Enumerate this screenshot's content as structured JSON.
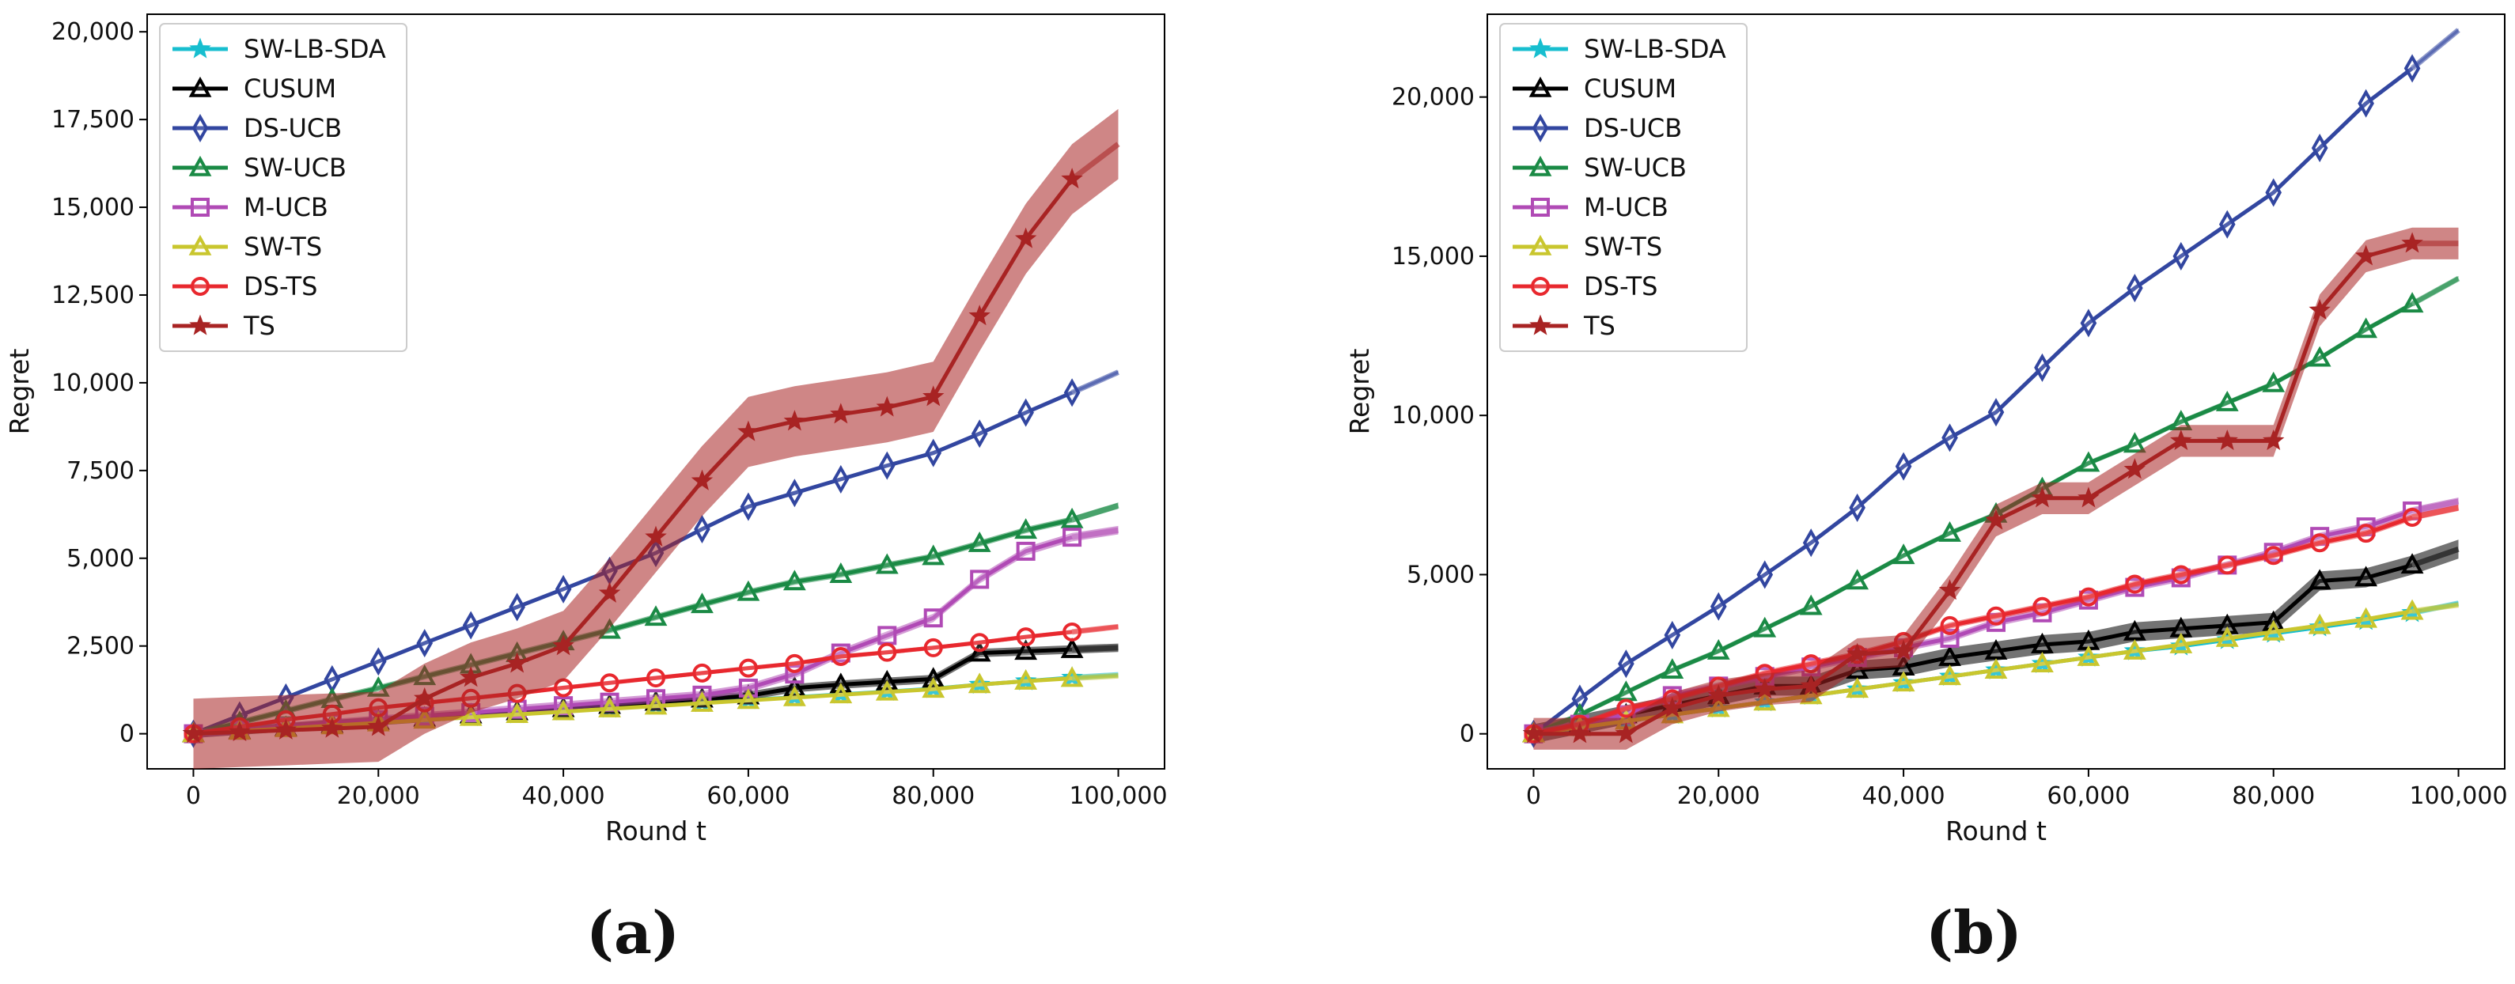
{
  "chart_data": [
    {
      "type": "line",
      "caption": "(a)",
      "xlabel": "Round t",
      "ylabel": "Regret",
      "xlim": [
        -5000,
        105000
      ],
      "ylim": [
        -1000,
        20500
      ],
      "xticks": [
        0,
        20000,
        40000,
        60000,
        80000,
        100000
      ],
      "xtick_labels": [
        "0",
        "20,000",
        "40,000",
        "60,000",
        "80,000",
        "100,000"
      ],
      "yticks": [
        0,
        2500,
        5000,
        7500,
        10000,
        12500,
        15000,
        17500,
        20000
      ],
      "ytick_labels": [
        "0",
        "2,500",
        "5,000",
        "7,500",
        "10,000",
        "12,500",
        "15,000",
        "17,500",
        "20,000"
      ],
      "legend_position": "top-left",
      "x": [
        0,
        5000,
        10000,
        15000,
        20000,
        25000,
        30000,
        35000,
        40000,
        45000,
        50000,
        55000,
        60000,
        65000,
        70000,
        75000,
        80000,
        85000,
        90000,
        95000
      ],
      "series": [
        {
          "name": "SW-LB-SDA",
          "color": "#17becf",
          "marker": "star",
          "band": 40,
          "end_value": 1680,
          "values": [
            0,
            80,
            160,
            240,
            320,
            400,
            480,
            560,
            640,
            720,
            800,
            880,
            960,
            1040,
            1120,
            1200,
            1280,
            1400,
            1500,
            1600
          ]
        },
        {
          "name": "CUSUM",
          "color": "#000000",
          "marker": "triangle",
          "band": 120,
          "end_value": 2450,
          "values": [
            0,
            90,
            180,
            270,
            360,
            450,
            540,
            630,
            720,
            810,
            900,
            990,
            1080,
            1300,
            1400,
            1480,
            1560,
            2300,
            2350,
            2400
          ]
        },
        {
          "name": "DS-UCB",
          "color": "#3246a0",
          "marker": "diamond",
          "band": 50,
          "end_value": 10300,
          "values": [
            0,
            520,
            1030,
            1550,
            2060,
            2580,
            3090,
            3610,
            4120,
            4640,
            5150,
            5830,
            6470,
            6860,
            7250,
            7640,
            8000,
            8550,
            9150,
            9720
          ]
        },
        {
          "name": "SW-UCB",
          "color": "#1a8a45",
          "marker": "triangle",
          "band": 90,
          "end_value": 6500,
          "values": [
            0,
            320,
            650,
            980,
            1300,
            1630,
            1960,
            2290,
            2620,
            2950,
            3320,
            3680,
            4030,
            4330,
            4540,
            4800,
            5050,
            5420,
            5800,
            6100
          ]
        },
        {
          "name": "M-UCB",
          "color": "#b04ab5",
          "marker": "square",
          "band": 120,
          "end_value": 5800,
          "values": [
            0,
            100,
            200,
            300,
            400,
            500,
            600,
            700,
            800,
            900,
            1000,
            1100,
            1300,
            1700,
            2300,
            2800,
            3300,
            4400,
            5200,
            5600
          ]
        },
        {
          "name": "SW-TS",
          "color": "#c9c62e",
          "marker": "triangle",
          "band": 40,
          "end_value": 1650,
          "values": [
            0,
            75,
            150,
            230,
            310,
            390,
            470,
            550,
            630,
            710,
            790,
            870,
            950,
            1030,
            1110,
            1190,
            1270,
            1400,
            1500,
            1580
          ]
        },
        {
          "name": "DS-TS",
          "color": "#e8282e",
          "marker": "circle",
          "band": 60,
          "end_value": 3050,
          "values": [
            0,
            200,
            400,
            560,
            740,
            880,
            1010,
            1150,
            1310,
            1450,
            1590,
            1730,
            1870,
            2000,
            2200,
            2320,
            2450,
            2600,
            2760,
            2900
          ]
        },
        {
          "name": "TS",
          "color": "#a82323",
          "marker": "star",
          "band": 1000,
          "end_value": 16800,
          "values": [
            0,
            50,
            100,
            150,
            200,
            1000,
            1600,
            2000,
            2500,
            4000,
            5600,
            7200,
            8600,
            8900,
            9100,
            9300,
            9600,
            11900,
            14100,
            15800
          ]
        }
      ]
    },
    {
      "type": "line",
      "caption": "(b)",
      "xlabel": "Round t",
      "ylabel": "Regret",
      "xlim": [
        -5000,
        105000
      ],
      "ylim": [
        -1100,
        22600
      ],
      "xticks": [
        0,
        20000,
        40000,
        60000,
        80000,
        100000
      ],
      "xtick_labels": [
        "0",
        "20,000",
        "40,000",
        "60,000",
        "80,000",
        "100,000"
      ],
      "yticks": [
        0,
        5000,
        10000,
        15000,
        20000
      ],
      "ytick_labels": [
        "0",
        "5,000",
        "10,000",
        "15,000",
        "20,000"
      ],
      "legend_position": "top-left",
      "x": [
        0,
        5000,
        10000,
        15000,
        20000,
        25000,
        30000,
        35000,
        40000,
        45000,
        50000,
        55000,
        60000,
        65000,
        70000,
        75000,
        80000,
        85000,
        90000,
        95000
      ],
      "series": [
        {
          "name": "SW-LB-SDA",
          "color": "#17becf",
          "marker": "star",
          "band": 60,
          "end_value": 4100,
          "values": [
            0,
            200,
            400,
            600,
            800,
            1000,
            1200,
            1400,
            1600,
            1800,
            2000,
            2200,
            2400,
            2600,
            2750,
            2950,
            3150,
            3350,
            3550,
            3800
          ]
        },
        {
          "name": "CUSUM",
          "color": "#000000",
          "marker": "triangle",
          "band": 300,
          "end_value": 5800,
          "values": [
            0,
            300,
            600,
            900,
            1200,
            1500,
            1500,
            2000,
            2100,
            2400,
            2600,
            2800,
            2900,
            3200,
            3300,
            3400,
            3500,
            4800,
            4900,
            5300
          ]
        },
        {
          "name": "DS-UCB",
          "color": "#3246a0",
          "marker": "diamond",
          "band": 60,
          "end_value": 22100,
          "values": [
            0,
            1100,
            2200,
            3100,
            4000,
            5000,
            6000,
            7100,
            8400,
            9300,
            10100,
            11500,
            12900,
            14000,
            15000,
            16000,
            17000,
            18400,
            19800,
            20900
          ]
        },
        {
          "name": "SW-UCB",
          "color": "#1a8a45",
          "marker": "triangle",
          "band": 80,
          "end_value": 14300,
          "values": [
            0,
            600,
            1300,
            2000,
            2600,
            3300,
            4000,
            4800,
            5600,
            6300,
            6900,
            7700,
            8500,
            9100,
            9800,
            10400,
            11000,
            11800,
            12700,
            13500
          ]
        },
        {
          "name": "M-UCB",
          "color": "#b04ab5",
          "marker": "square",
          "band": 120,
          "end_value": 7300,
          "values": [
            0,
            300,
            600,
            1200,
            1500,
            1800,
            2100,
            2400,
            2700,
            3000,
            3500,
            3800,
            4200,
            4600,
            4900,
            5300,
            5700,
            6200,
            6500,
            7000
          ]
        },
        {
          "name": "SW-TS",
          "color": "#c9c62e",
          "marker": "triangle",
          "band": 60,
          "end_value": 4050,
          "values": [
            0,
            200,
            400,
            600,
            800,
            1000,
            1200,
            1400,
            1600,
            1800,
            2000,
            2200,
            2400,
            2600,
            2800,
            3000,
            3200,
            3400,
            3600,
            3850
          ]
        },
        {
          "name": "DS-TS",
          "color": "#e8282e",
          "marker": "circle",
          "band": 100,
          "end_value": 7100,
          "values": [
            0,
            300,
            800,
            1100,
            1500,
            1900,
            2200,
            2500,
            2900,
            3400,
            3700,
            4000,
            4300,
            4700,
            5000,
            5300,
            5600,
            6000,
            6300,
            6800
          ]
        },
        {
          "name": "TS",
          "color": "#a82323",
          "marker": "star",
          "band": 500,
          "end_value": 15400,
          "values": [
            0,
            0,
            0,
            800,
            1200,
            1400,
            1500,
            2500,
            2600,
            4500,
            6700,
            7400,
            7400,
            8300,
            9200,
            9200,
            9200,
            13300,
            15000,
            15400
          ]
        }
      ]
    }
  ]
}
